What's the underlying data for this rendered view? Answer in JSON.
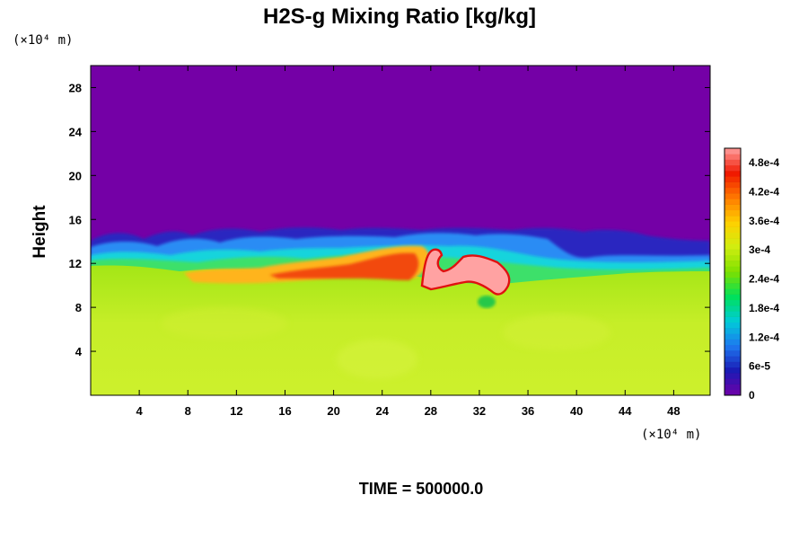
{
  "chart_data": {
    "type": "heatmap",
    "title": "H2S-g Mixing Ratio [kg/kg]",
    "ylabel": "Height",
    "xunit": "(×10⁴ m)",
    "yunit": "(×10⁴ m)",
    "xlim": [
      0,
      51
    ],
    "ylim": [
      0,
      30
    ],
    "xticks": [
      4,
      8,
      12,
      16,
      20,
      24,
      28,
      32,
      36,
      40,
      44,
      48
    ],
    "yticks": [
      4,
      8,
      12,
      16,
      20,
      24,
      28
    ],
    "colorbar": {
      "ticks": [
        "0",
        "6e-5",
        "1.2e-4",
        "1.8e-4",
        "2.4e-4",
        "3e-4",
        "3.6e-4",
        "4.2e-4",
        "4.8e-4"
      ],
      "values": [
        0,
        6e-05,
        0.00012,
        0.00018,
        0.00024,
        0.0003,
        0.00036,
        0.00042,
        0.00048
      ],
      "max": 0.00051,
      "colors": [
        "#7000a8",
        "#1a1ab4",
        "#1e78f0",
        "#00ccd8",
        "#00e05a",
        "#7ee000",
        "#d0ee10",
        "#ffd000",
        "#ff7a00",
        "#f01800",
        "#ff9e9e"
      ]
    },
    "field": {
      "background_upper": "#7400a6",
      "background_lower": "#c4ee2a",
      "interface_height": 13.5,
      "interface_top_max": 15,
      "features": [
        {
          "name": "orange band",
          "x": [
            8,
            27
          ],
          "y": [
            10,
            13
          ]
        },
        {
          "name": "pink plume",
          "x": [
            27.5,
            34.5
          ],
          "y": [
            9,
            13.5
          ]
        }
      ]
    }
  },
  "footer": {
    "time_label": "TIME = 500000.0"
  }
}
